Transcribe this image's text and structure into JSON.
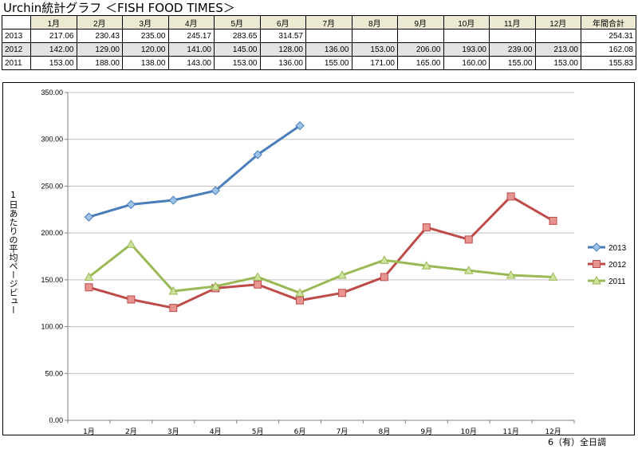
{
  "title": "Urchin統計グラフ ＜FISH FOOD TIMES＞",
  "table": {
    "months": [
      "1月",
      "2月",
      "3月",
      "4月",
      "5月",
      "6月",
      "7月",
      "8月",
      "9月",
      "10月",
      "11月",
      "12月"
    ],
    "total_header": "年間合計",
    "rows": [
      {
        "year": "2013",
        "values": [
          "217.06",
          "230.43",
          "235.00",
          "245.17",
          "283.65",
          "314.57",
          "",
          "",
          "",
          "",
          "",
          ""
        ],
        "total": "254.31"
      },
      {
        "year": "2012",
        "values": [
          "142.00",
          "129.00",
          "120.00",
          "141.00",
          "145.00",
          "128.00",
          "136.00",
          "153.00",
          "206.00",
          "193.00",
          "239.00",
          "213.00"
        ],
        "total": "162.08"
      },
      {
        "year": "2011",
        "values": [
          "153.00",
          "188.00",
          "138.00",
          "143.00",
          "153.00",
          "136.00",
          "155.00",
          "171.00",
          "165.00",
          "160.00",
          "155.00",
          "153.00"
        ],
        "total": "155.83"
      }
    ]
  },
  "chart_data": {
    "type": "line",
    "title": "",
    "xlabel": "",
    "ylabel": "1日あたりの平均ページビュー",
    "ylim": [
      0,
      350
    ],
    "yticks": [
      "0.00",
      "50.00",
      "100.00",
      "150.00",
      "200.00",
      "250.00",
      "300.00",
      "350.00"
    ],
    "categories": [
      "1月",
      "2月",
      "3月",
      "4月",
      "5月",
      "6月",
      "7月",
      "8月",
      "9月",
      "10月",
      "11月",
      "12月"
    ],
    "grid": true,
    "legend_position": "right",
    "series": [
      {
        "name": "2013",
        "color": "#4a7ebb",
        "marker": "diamond",
        "values": [
          217.06,
          230.43,
          235.0,
          245.17,
          283.65,
          314.57,
          null,
          null,
          null,
          null,
          null,
          null
        ]
      },
      {
        "name": "2012",
        "color": "#be4b48",
        "marker": "square",
        "values": [
          142,
          129,
          120,
          141,
          145,
          128,
          136,
          153,
          206,
          193,
          239,
          213
        ]
      },
      {
        "name": "2011",
        "color": "#98b954",
        "marker": "triangle",
        "values": [
          153,
          188,
          138,
          143,
          153,
          136,
          155,
          171,
          165,
          160,
          155,
          153
        ]
      }
    ]
  },
  "footer": "6（有）全日調"
}
